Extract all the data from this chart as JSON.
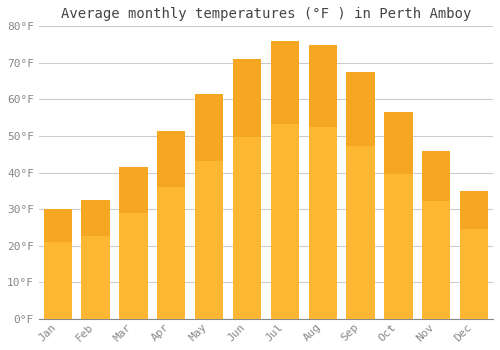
{
  "title": "Average monthly temperatures (°F ) in Perth Amboy",
  "months": [
    "Jan",
    "Feb",
    "Mar",
    "Apr",
    "May",
    "Jun",
    "Jul",
    "Aug",
    "Sep",
    "Oct",
    "Nov",
    "Dec"
  ],
  "values": [
    30,
    32.5,
    41.5,
    51.5,
    61.5,
    71,
    76,
    75,
    67.5,
    56.5,
    46,
    35
  ],
  "bar_color_top": "#F5A623",
  "bar_color_bottom": "#FDB732",
  "bar_edge_color": "none",
  "background_color": "#FFFFFF",
  "grid_color": "#CCCCCC",
  "ylim": [
    0,
    80
  ],
  "ytick_step": 10,
  "title_fontsize": 10,
  "tick_fontsize": 8,
  "font_family": "monospace",
  "tick_color": "#888888",
  "title_color": "#444444",
  "spine_color": "#888888"
}
